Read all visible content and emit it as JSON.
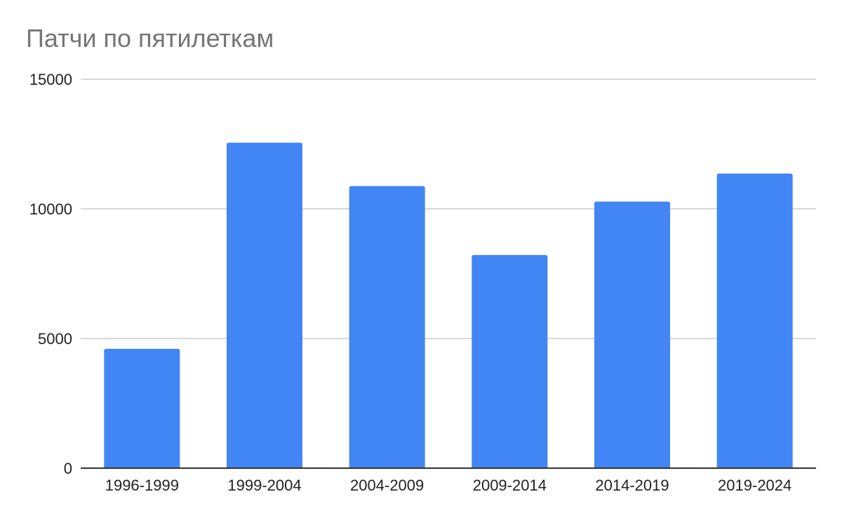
{
  "chart_data": {
    "type": "bar",
    "title": "Патчи по пятилеткам",
    "xlabel": "",
    "ylabel": "",
    "categories": [
      "1996-1999",
      "1999-2004",
      "2004-2009",
      "2009-2014",
      "2014-2019",
      "2019-2024"
    ],
    "series": [
      {
        "values": [
          4600,
          12550,
          10880,
          8220,
          10280,
          11360
        ]
      }
    ],
    "ylim": [
      0,
      15000
    ],
    "yticks": [
      0,
      5000,
      10000,
      15000
    ],
    "grid": true,
    "legend": "none",
    "colors": {
      "bar": "#4285F4",
      "grid": "#cccccc",
      "axis": "#333333",
      "title": "#757575",
      "tick_label": "#222222"
    }
  }
}
